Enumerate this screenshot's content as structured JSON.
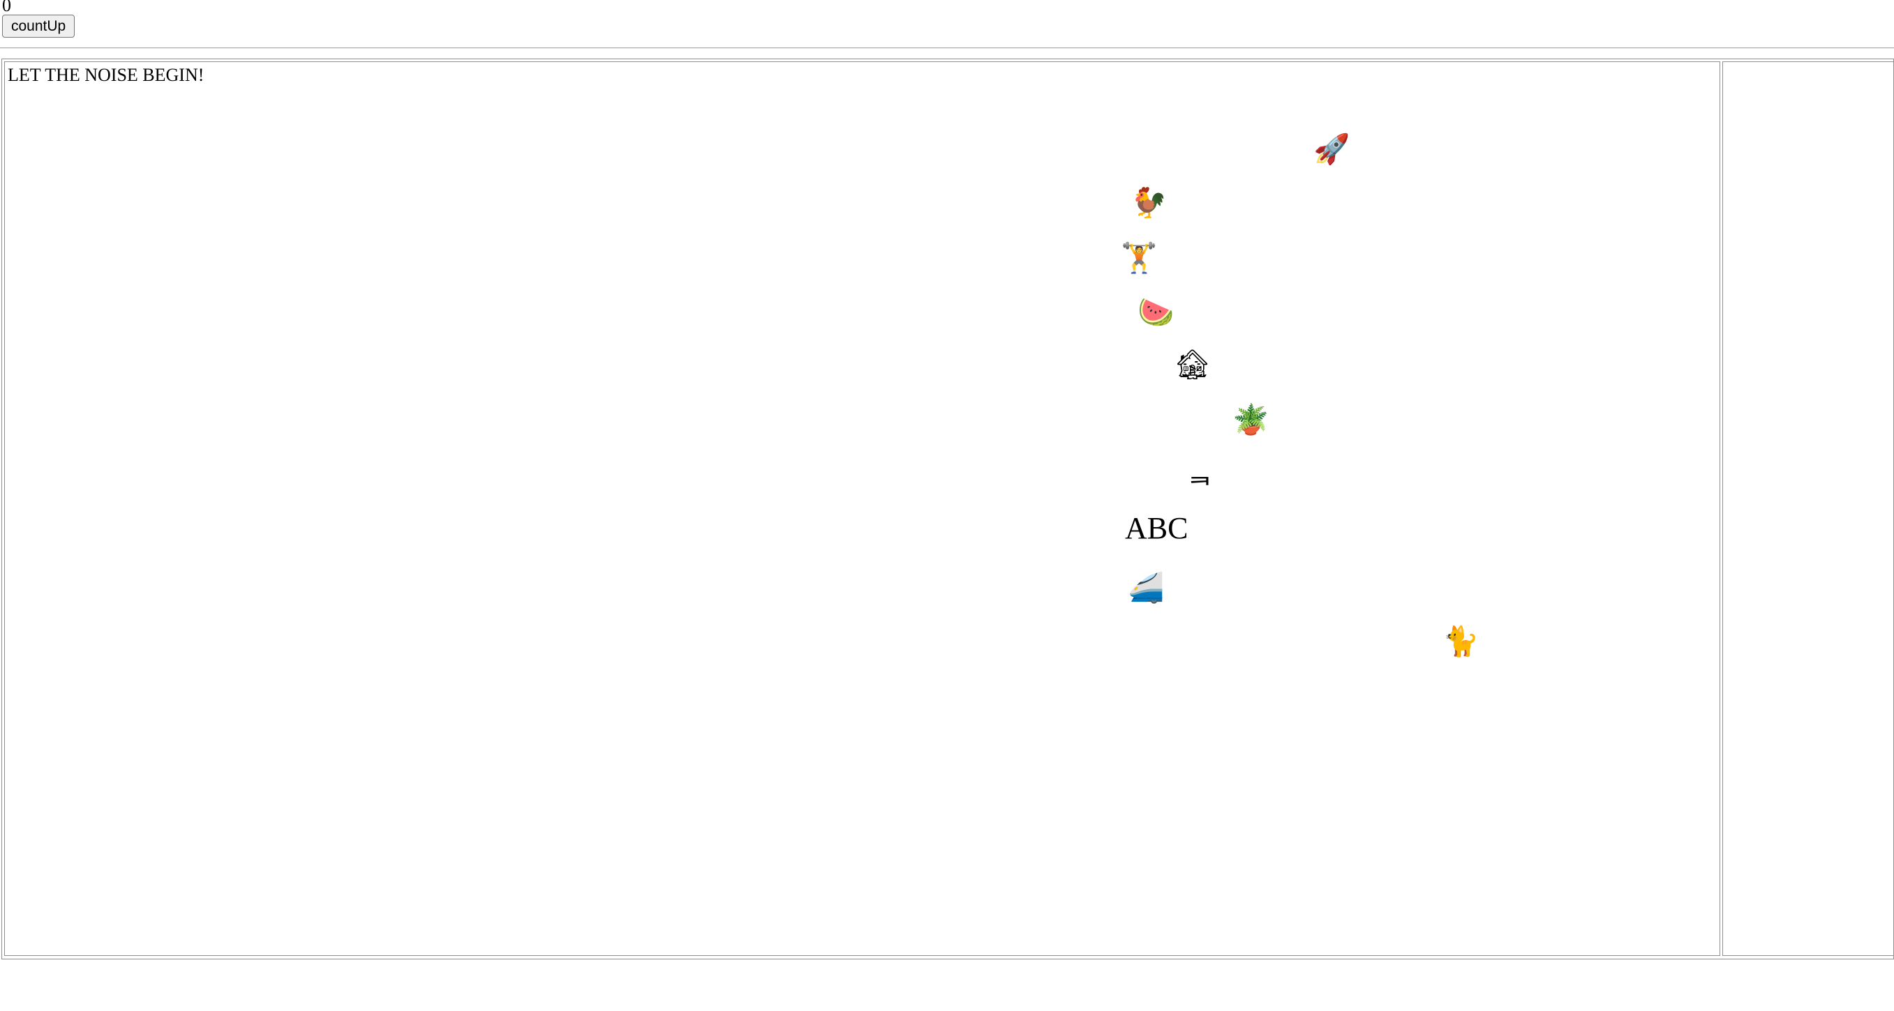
{
  "counter": {
    "value": "0"
  },
  "controls": {
    "count_up_label": "countUp"
  },
  "noise": {
    "title": "LET THE NOISE BEGIN!",
    "items": [
      {
        "text": "🚀",
        "icon": "rocket-icon"
      },
      {
        "text": "🐓",
        "icon": "rooster-icon"
      },
      {
        "text": "🏋",
        "icon": "weightlifter-icon"
      },
      {
        "text": "🍉",
        "icon": "watermelon-icon"
      },
      {
        "text": "🏚",
        "icon": "derelict-house-icon"
      },
      {
        "text": "🪴",
        "icon": "potted-plant-icon"
      },
      {
        "text": "ᆿ",
        "icon": "korean-letter"
      },
      {
        "text": "ABC",
        "icon": "text"
      },
      {
        "text": "🚄",
        "icon": "high-speed-train-icon"
      },
      {
        "text": "🐈",
        "icon": "cat-icon"
      }
    ]
  }
}
